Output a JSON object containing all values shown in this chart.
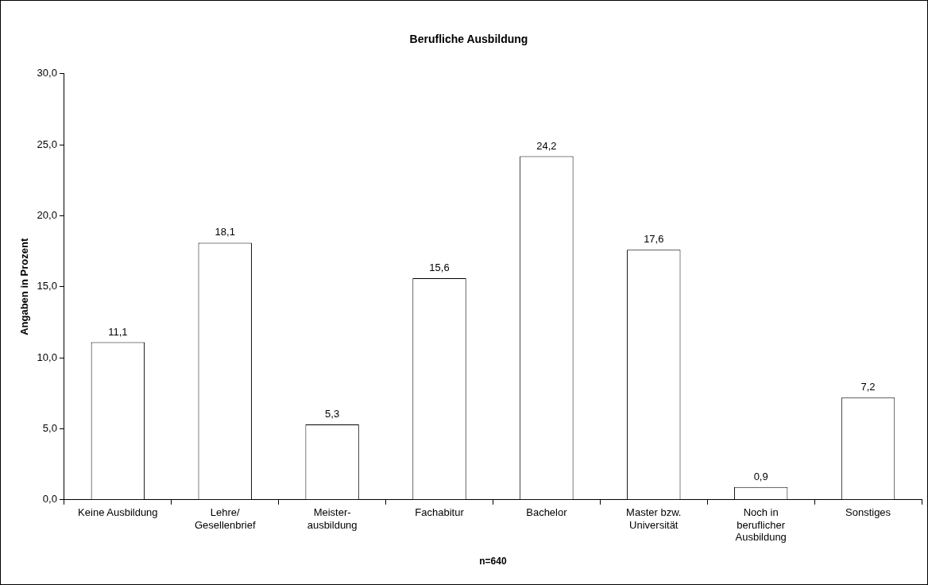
{
  "chart_data": {
    "type": "bar",
    "title": "Berufliche Ausbildung",
    "xlabel": "n=640",
    "ylabel": "Angaben in Prozent",
    "categories": [
      "Keine Ausbildung",
      "Lehre/\nGesellenbrief",
      "Meister-\nausbildung",
      "Fachabitur",
      "Bachelor",
      "Master bzw.\nUniversität",
      "Noch in\nberuflicher\nAusbildung",
      "Sonstiges"
    ],
    "values": [
      11.1,
      18.1,
      5.3,
      15.6,
      24.2,
      17.6,
      0.9,
      7.2
    ],
    "value_labels": [
      "11,1",
      "18,1",
      "5,3",
      "15,6",
      "24,2",
      "17,6",
      "0,9",
      "7,2"
    ],
    "color": "#ffffff",
    "ylim": [
      0,
      30
    ],
    "yticks": [
      {
        "value": 0,
        "label": "0,0"
      },
      {
        "value": 5,
        "label": "5,0"
      },
      {
        "value": 10,
        "label": "10,0"
      },
      {
        "value": 15,
        "label": "15,0"
      },
      {
        "value": 20,
        "label": "20,0"
      },
      {
        "value": 25,
        "label": "25,0"
      },
      {
        "value": 30,
        "label": "30,0"
      }
    ],
    "grid": false,
    "legend": false
  }
}
